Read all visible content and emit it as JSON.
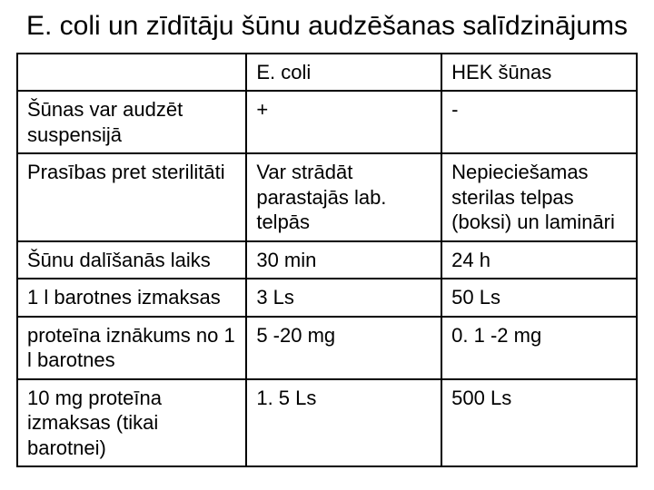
{
  "title": "E. coli un zīdītāju šūnu audzēšanas salīdzinājums",
  "table": {
    "type": "table",
    "border_color": "#000000",
    "background_color": "#ffffff",
    "text_color": "#000000",
    "font_family": "Arial",
    "title_fontsize": 30,
    "cell_fontsize": 22,
    "column_widths_pct": [
      37,
      31.5,
      31.5
    ],
    "columns": [
      "",
      "E. coli",
      "HEK šūnas"
    ],
    "rows": [
      {
        "label": "Šūnas var audzēt suspensijā",
        "ecoli": "+",
        "hek": "-"
      },
      {
        "label": "Prasības pret sterilitāti",
        "ecoli": "Var strādāt parastajās lab. telpās",
        "hek": "Nepieciešamas sterilas telpas (boksi) un lamināri"
      },
      {
        "label": "Šūnu dalīšanās laiks",
        "ecoli": "30 min",
        "hek": "24 h"
      },
      {
        "label": "1 l barotnes izmaksas",
        "ecoli": "3 Ls",
        "hek": "50 Ls"
      },
      {
        "label": "proteīna iznākums no 1 l barotnes",
        "ecoli": "5 -20 mg",
        "hek": "0. 1 -2 mg"
      },
      {
        "label": "10 mg proteīna izmaksas (tikai barotnei)",
        "ecoli": "1. 5 Ls",
        "hek": "500 Ls"
      }
    ]
  }
}
